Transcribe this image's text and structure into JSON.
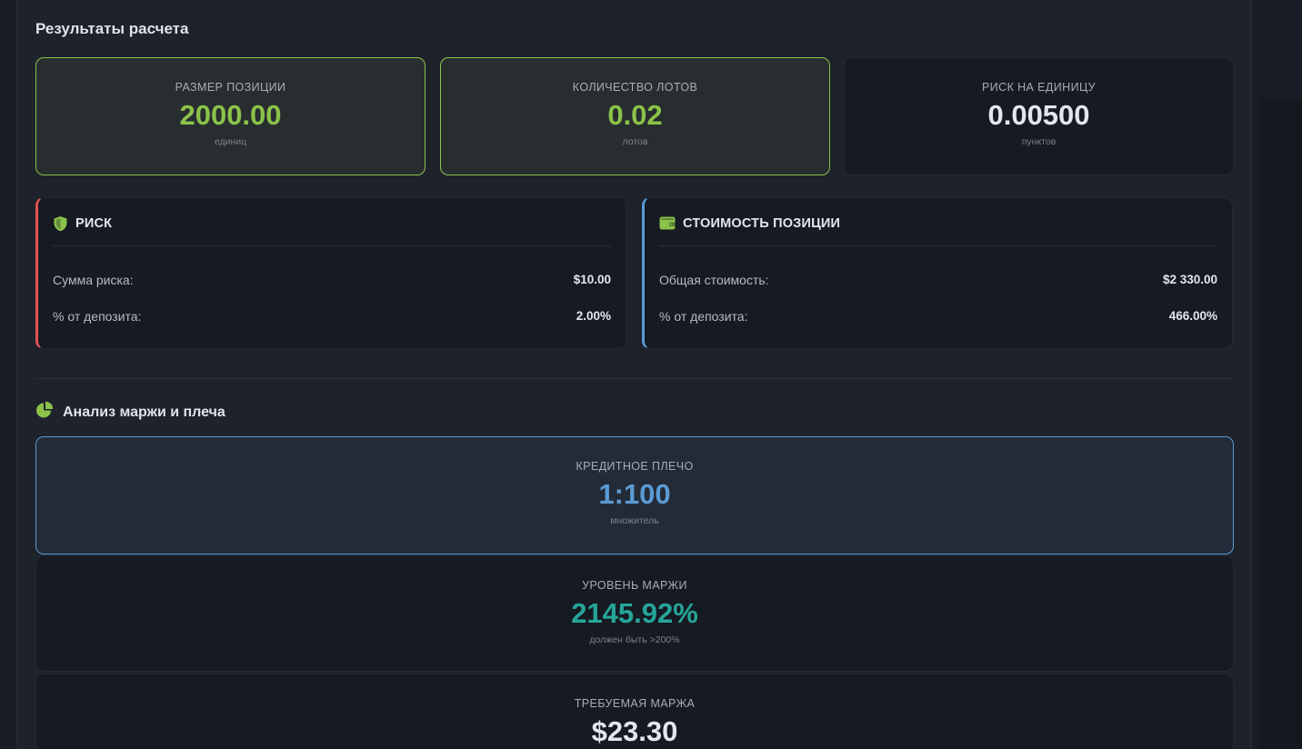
{
  "section_title": "Результаты расчета",
  "stats": [
    {
      "label": "РАЗМЕР ПОЗИЦИИ",
      "value": "2000.00",
      "unit": "единиц"
    },
    {
      "label": "КОЛИЧЕСТВО ЛОТОВ",
      "value": "0.02",
      "unit": "лотов"
    },
    {
      "label": "РИСК НА ЕДИНИЦУ",
      "value": "0.00500",
      "unit": "пунктов"
    }
  ],
  "risk_card": {
    "title": "РИСК",
    "icon": "shield-icon",
    "rows": [
      {
        "label": "Сумма риска:",
        "value": "$10.00"
      },
      {
        "label": "% от депозита:",
        "value": "2.00%"
      }
    ]
  },
  "value_card": {
    "title": "СТОИМОСТЬ ПОЗИЦИИ",
    "icon": "wallet-icon",
    "rows": [
      {
        "label": "Общая стоимость:",
        "value": "$2 330.00"
      },
      {
        "label": "% от депозита:",
        "value": "466.00%"
      }
    ]
  },
  "analysis": {
    "title": "Анализ маржи и плеча",
    "icon": "pie-chart-icon",
    "leverage": {
      "label": "КРЕДИТНОЕ ПЛЕЧО",
      "value": "1:100",
      "unit": "множитель"
    },
    "margin_level": {
      "label": "УРОВЕНЬ МАРЖИ",
      "value": "2145.92%",
      "unit": "должен быть >200%"
    },
    "required_margin": {
      "label": "ТРЕБУЕМАЯ МАРЖА",
      "value": "$23.30"
    }
  },
  "colors": {
    "accent_green": "#8bc34a",
    "accent_blue": "#5b9bd5",
    "accent_red": "#e05252",
    "accent_teal": "#26a69a"
  }
}
